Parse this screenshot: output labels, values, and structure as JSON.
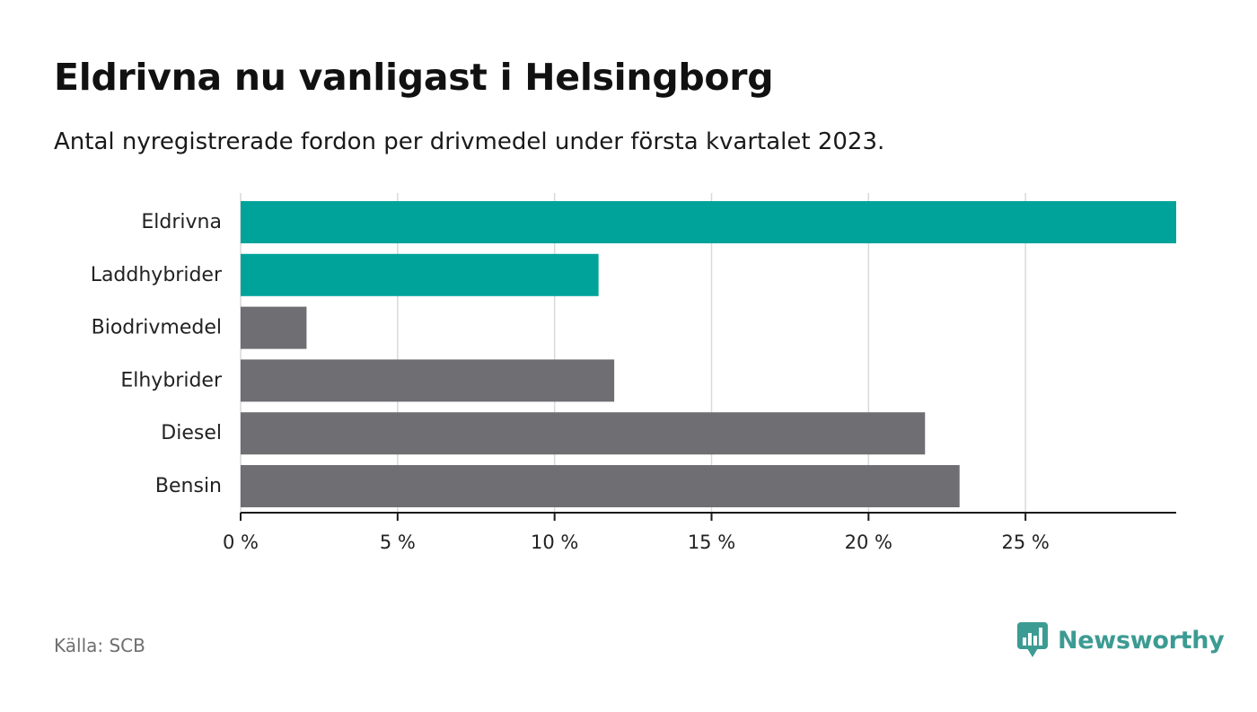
{
  "title": "Eldrivna nu vanligast i Helsingborg",
  "subtitle": "Antal nyregistrerade fordon per drivmedel under första kvartalet 2023.",
  "source": "Källa: SCB",
  "brand": {
    "name": "Newsworthy",
    "icon": "newsworthy-logo-icon",
    "color": "#3c9b93"
  },
  "colors": {
    "highlight": "#00a39a",
    "default": "#6f6e73",
    "grid": "#d9d9d9",
    "axis": "#1a1a1a"
  },
  "chart_data": {
    "type": "bar",
    "orientation": "horizontal",
    "categories": [
      "Eldrivna",
      "Laddhybrider",
      "Biodrivmedel",
      "Elhybrider",
      "Diesel",
      "Bensin"
    ],
    "values": [
      29.8,
      11.4,
      2.1,
      11.9,
      21.8,
      22.9
    ],
    "highlighted": [
      true,
      true,
      false,
      false,
      false,
      false
    ],
    "xlim": [
      0,
      29.8
    ],
    "xticks": [
      0,
      5,
      10,
      15,
      20,
      25
    ],
    "xtick_labels": [
      "0 %",
      "5 %",
      "10 %",
      "15 %",
      "20 %",
      "25 %"
    ],
    "grid": true
  }
}
